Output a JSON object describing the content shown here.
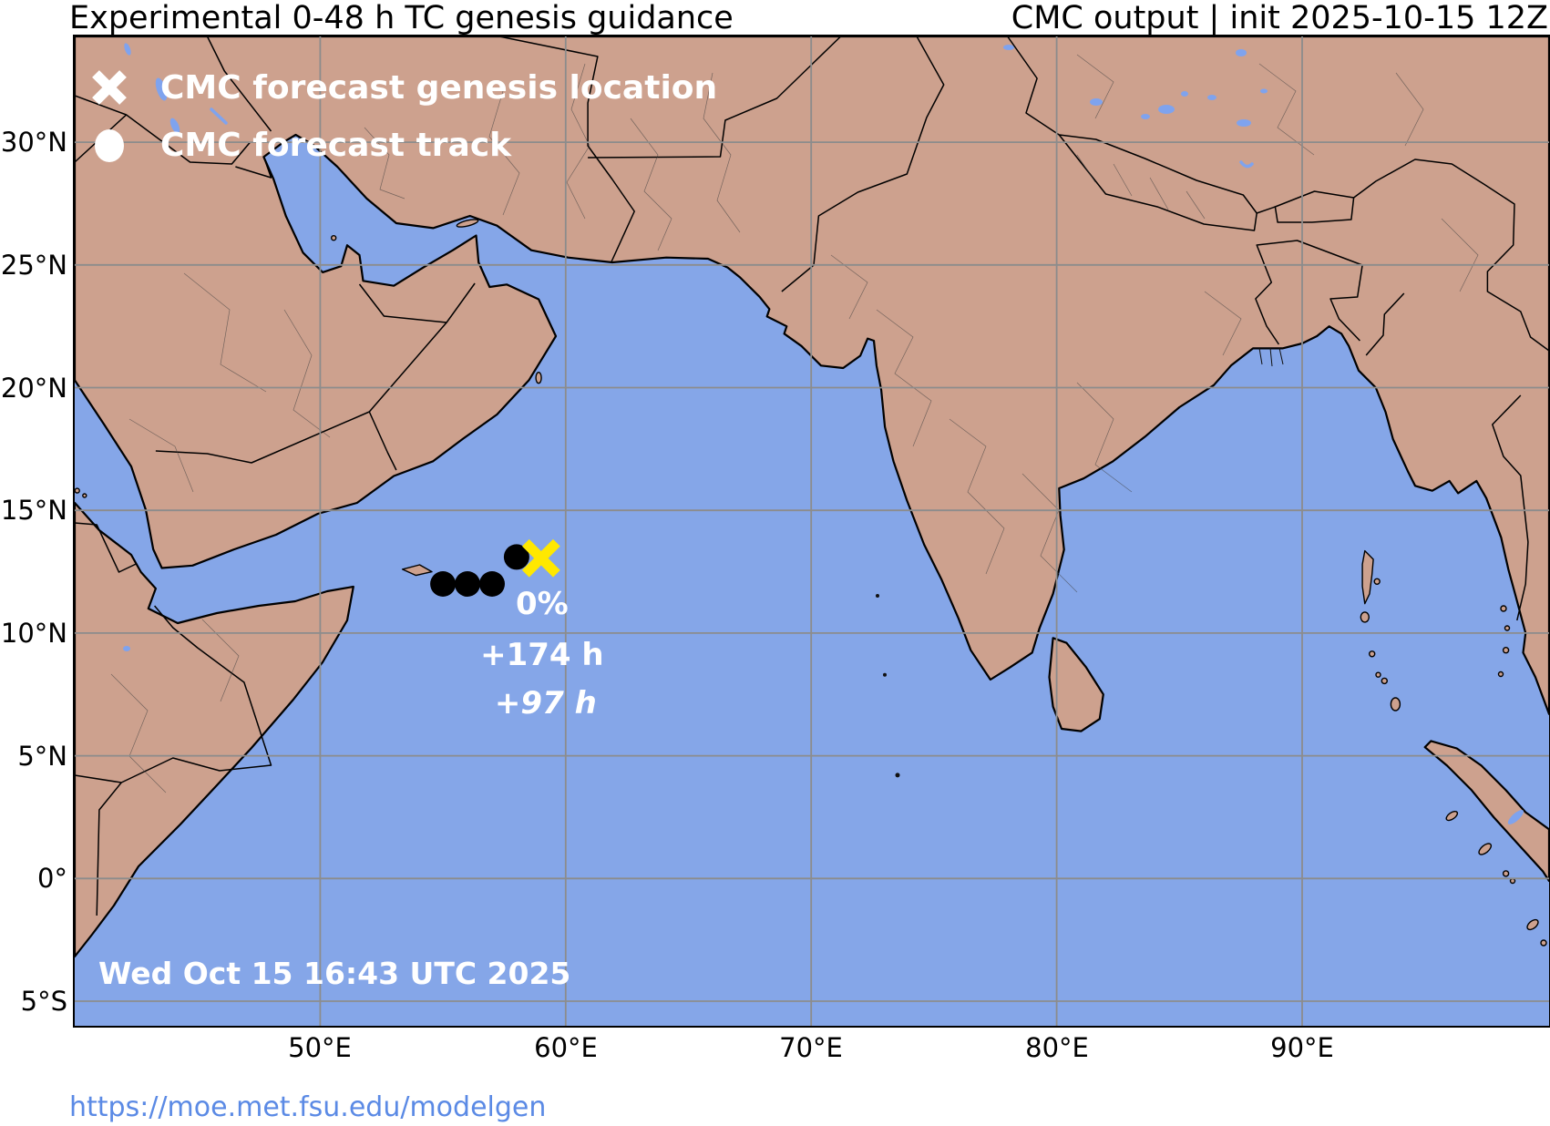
{
  "header": {
    "left_title": "Experimental 0-48 h TC genesis guidance",
    "right_title": "CMC output | init 2025-10-15 12Z"
  },
  "legend": {
    "genesis_label": "CMC forecast genesis location",
    "track_label": "CMC forecast track"
  },
  "axes": {
    "lat": [
      "30°N",
      "25°N",
      "20°N",
      "15°N",
      "10°N",
      "5°N",
      "0°",
      "5°S"
    ],
    "lon": [
      "50°E",
      "60°E",
      "70°E",
      "80°E",
      "90°E"
    ]
  },
  "annotations": {
    "probability": "0%",
    "forecast_hour": "+174 h",
    "genesis_hour": "+97 h",
    "timestamp": "Wed Oct 15 16:43 UTC 2025"
  },
  "track": {
    "points_lonlat": [
      [
        55.0,
        12.0
      ],
      [
        56.0,
        12.0
      ],
      [
        57.0,
        12.0
      ],
      [
        58.0,
        13.1
      ]
    ],
    "genesis_lonlat": [
      59.0,
      13.05
    ]
  },
  "map_extent": {
    "lon_min": 40,
    "lon_max": 100,
    "lat_min": -6,
    "lat_max": 34.3
  },
  "footer": {
    "url": "https://moe.met.fsu.edu/modelgen"
  },
  "colors": {
    "ocean": "#85A6E8",
    "land": "#CDA18E",
    "lake": "#7FA3EE",
    "gridline": "#8C8C8C",
    "genesis_marker": "#FFE800",
    "track_marker": "#000000",
    "url_link": "#5B8AE5"
  }
}
